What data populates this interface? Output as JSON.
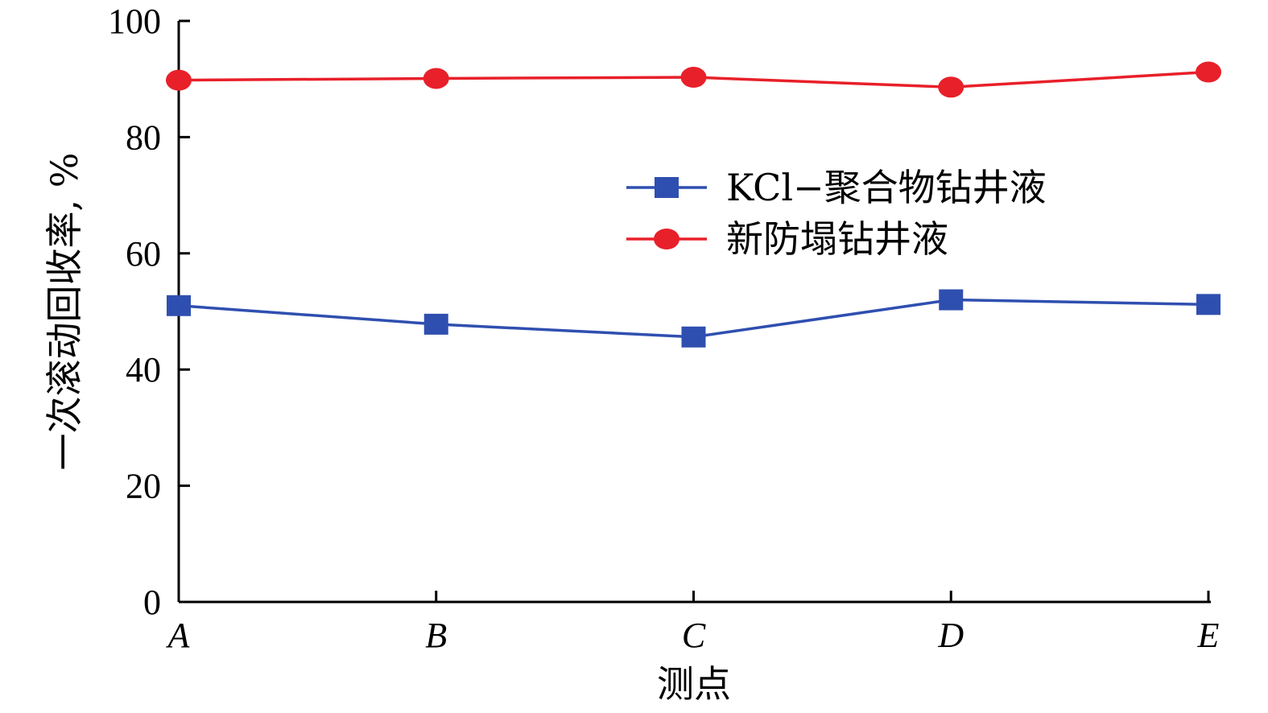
{
  "chart_data": {
    "type": "line",
    "categories": [
      "A",
      "B",
      "C",
      "D",
      "E"
    ],
    "xlabel": "测点",
    "ylabel": "一次滚动回收率, %",
    "ylim": [
      0,
      100
    ],
    "yticks": [
      0,
      20,
      40,
      60,
      80,
      100
    ],
    "legend_position": "center-right",
    "series": [
      {
        "name": "KCl−聚合物钻井液",
        "marker": "square",
        "color": "#2f4fb0",
        "values": [
          51.0,
          47.8,
          45.6,
          52.0,
          51.2
        ]
      },
      {
        "name": "新防塌钻井液",
        "marker": "circle",
        "color": "#e8202a",
        "values": [
          89.8,
          90.1,
          90.3,
          88.6,
          91.2
        ]
      }
    ]
  }
}
